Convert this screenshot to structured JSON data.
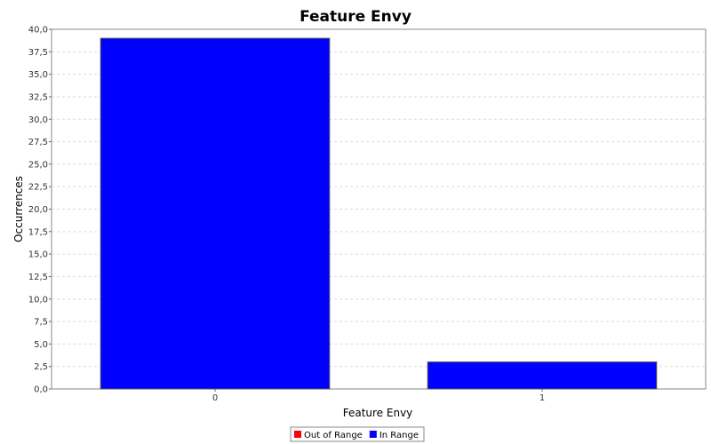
{
  "chart_data": {
    "type": "bar",
    "title": "Feature Envy",
    "xlabel": "Feature Envy",
    "ylabel": "Occurrences",
    "categories": [
      "0",
      "1"
    ],
    "values": [
      39,
      3
    ],
    "ylim": [
      0,
      40
    ],
    "yticks": [
      "0,0",
      "2,5",
      "5,0",
      "7,5",
      "10,0",
      "12,5",
      "15,0",
      "17,5",
      "20,0",
      "22,5",
      "25,0",
      "27,5",
      "30,0",
      "32,5",
      "35,0",
      "37,5",
      "40,0"
    ],
    "grid": true,
    "legend_position": "bottom",
    "legend": [
      {
        "name": "Out of Range",
        "color": "#ff0000"
      },
      {
        "name": "In Range",
        "color": "#0000ff"
      }
    ],
    "bar_color": "#0000ff"
  }
}
